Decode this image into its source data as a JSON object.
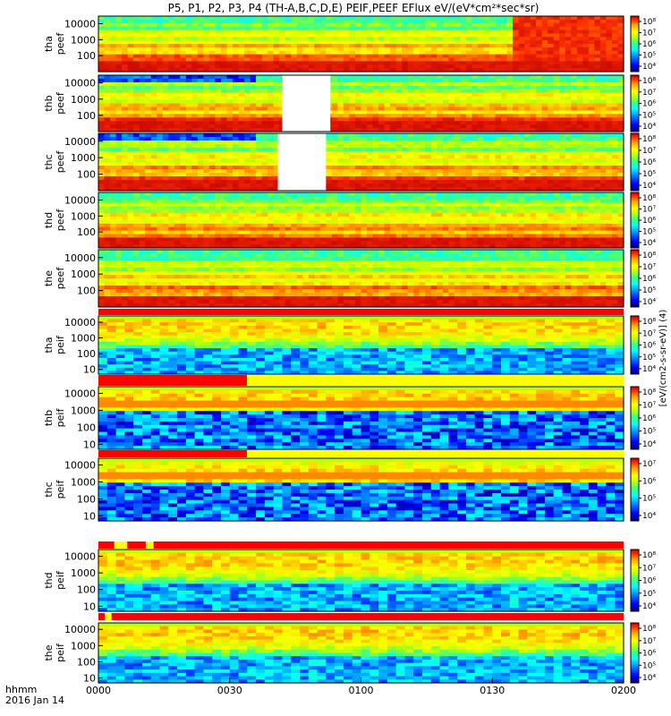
{
  "chart_data": {
    "type": "heatmap",
    "title": "P5, P1, P2, P3, P4 (TH-A,B,C,D,E) PEIF,PEEF EFlux eV/(eV*cm²*sec*sr)",
    "colorbar_label": "[eV/(cm2-s-sr-eV)] (4)",
    "time_axis": {
      "label_top": "hhmm",
      "label_bottom": "2016 Jan 14",
      "ticks": [
        "0000",
        "0030",
        "0100",
        "0130",
        "0200"
      ],
      "range": [
        "00:00",
        "02:00"
      ]
    },
    "panels": [
      {
        "probe": "tha",
        "product": "peef",
        "ylabel": "tha\npeef",
        "yticks": [
          "10000",
          "1000",
          "100"
        ],
        "ylim_eV": [
          10,
          30000
        ],
        "log": true,
        "cbar_ticks": [
          "10⁸",
          "10⁷",
          "10⁶",
          "10⁵",
          "10⁴"
        ],
        "gap": null
      },
      {
        "probe": "thb",
        "product": "peef",
        "ylabel": "thb\npeef",
        "yticks": [
          "10000",
          "1000",
          "100"
        ],
        "ylim_eV": [
          10,
          30000
        ],
        "log": true,
        "cbar_ticks": [
          "10⁸",
          "10⁷",
          "10⁶",
          "10⁵",
          "10⁴"
        ],
        "gap": [
          "00:42",
          "00:53"
        ]
      },
      {
        "probe": "thc",
        "product": "peef",
        "ylabel": "thc\npeef",
        "yticks": [
          "10000",
          "1000",
          "100"
        ],
        "ylim_eV": [
          10,
          30000
        ],
        "log": true,
        "cbar_ticks": [
          "10⁸",
          "10⁷",
          "10⁶",
          "10⁵",
          "10⁴"
        ],
        "gap": [
          "00:41",
          "00:52"
        ]
      },
      {
        "probe": "thd",
        "product": "peef",
        "ylabel": "thd\npeef",
        "yticks": [
          "10000",
          "1000",
          "100"
        ],
        "ylim_eV": [
          10,
          30000
        ],
        "log": true,
        "cbar_ticks": [
          "10⁸",
          "10⁷",
          "10⁶",
          "10⁵",
          "10⁴"
        ],
        "gap": null
      },
      {
        "probe": "the",
        "product": "peef",
        "ylabel": "the\npeef",
        "yticks": [
          "10000",
          "1000",
          "100"
        ],
        "ylim_eV": [
          10,
          30000
        ],
        "log": true,
        "cbar_ticks": [
          "10⁸",
          "10⁷",
          "10⁶",
          "10⁵",
          "10⁴"
        ],
        "gap": null
      },
      {
        "probe": "tha",
        "product": "peif",
        "ylabel": "tha\npeif",
        "yticks": [
          "10000",
          "1000",
          "100",
          "10"
        ],
        "ylim_eV": [
          5,
          25000
        ],
        "log": true,
        "cbar_ticks": [
          "10⁸",
          "10⁷",
          "10⁶",
          "10⁵",
          "10⁴"
        ],
        "gap": null
      },
      {
        "probe": "thb",
        "product": "peif",
        "ylabel": "thb\npeif",
        "yticks": [
          "10000",
          "1000",
          "100",
          "10"
        ],
        "ylim_eV": [
          5,
          25000
        ],
        "log": true,
        "cbar_ticks": [
          "10⁸",
          "10⁷",
          "10⁶",
          "10⁵",
          "10⁴"
        ],
        "gap": null
      },
      {
        "probe": "thc",
        "product": "peif",
        "ylabel": "thc\npeif",
        "yticks": [
          "10000",
          "1000",
          "100",
          "10"
        ],
        "ylim_eV": [
          5,
          25000
        ],
        "log": true,
        "cbar_ticks": [
          "10⁷",
          "10⁶",
          "10⁵",
          "10⁴"
        ],
        "gap": null
      },
      {
        "probe": "thd",
        "product": "peif",
        "ylabel": "thd\npeif",
        "yticks": [
          "10000",
          "1000",
          "100",
          "10"
        ],
        "ylim_eV": [
          5,
          25000
        ],
        "log": true,
        "cbar_ticks": [
          "10⁸",
          "10⁷",
          "10⁶",
          "10⁵",
          "10⁴"
        ],
        "gap": null
      },
      {
        "probe": "the",
        "product": "peif",
        "ylabel": "the\npeif",
        "yticks": [
          "10000",
          "1000",
          "100",
          "10"
        ],
        "ylim_eV": [
          5,
          25000
        ],
        "log": true,
        "cbar_ticks": [
          "10⁸",
          "10⁷",
          "10⁶",
          "10⁵",
          "10⁴"
        ],
        "gap": null
      }
    ],
    "colors": {
      "colormap": [
        "#000070",
        "#0000ff",
        "#0090ff",
        "#00ffff",
        "#40ff80",
        "#c0ff00",
        "#ffff00",
        "#ffa000",
        "#ff3000",
        "#c00000"
      ],
      "mode_bar_red": "#ff0000",
      "mode_bar_yellow": "#ffff00"
    }
  }
}
